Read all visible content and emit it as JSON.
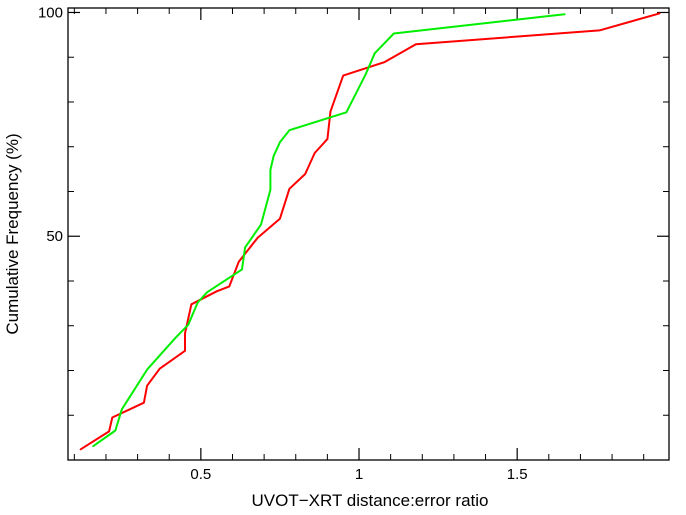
{
  "chart_data": {
    "type": "line",
    "title": "",
    "xlabel": "UVOT−XRT distance:error ratio",
    "ylabel": "Cumulative Frequency (%)",
    "xlim": [
      0.08,
      1.98
    ],
    "ylim": [
      0,
      101
    ],
    "x_ticks": [
      {
        "value": 0.5,
        "label": "0.5"
      },
      {
        "value": 1.0,
        "label": "1"
      },
      {
        "value": 1.5,
        "label": "1.5"
      }
    ],
    "x_minor_ticks": [
      0.1,
      0.2,
      0.3,
      0.4,
      0.6,
      0.7,
      0.8,
      0.9,
      1.1,
      1.2,
      1.3,
      1.4,
      1.6,
      1.7,
      1.8,
      1.9
    ],
    "y_ticks": [
      {
        "value": 50,
        "label": "50"
      },
      {
        "value": 100,
        "label": "100"
      }
    ],
    "y_minor_ticks": [
      10,
      20,
      30,
      40,
      60,
      70,
      80,
      90
    ],
    "grid": false,
    "series": [
      {
        "color": "#ff0000",
        "points": [
          [
            0.12,
            2.4
          ],
          [
            0.21,
            6.4
          ],
          [
            0.22,
            9.5
          ],
          [
            0.32,
            12.8
          ],
          [
            0.33,
            16.6
          ],
          [
            0.37,
            20.4
          ],
          [
            0.45,
            24.4
          ],
          [
            0.45,
            28.3
          ],
          [
            0.47,
            34.8
          ],
          [
            0.55,
            37.7
          ],
          [
            0.59,
            38.8
          ],
          [
            0.62,
            44.3
          ],
          [
            0.68,
            49.7
          ],
          [
            0.75,
            53.9
          ],
          [
            0.78,
            60.6
          ],
          [
            0.83,
            63.9
          ],
          [
            0.86,
            68.6
          ],
          [
            0.9,
            71.7
          ],
          [
            0.91,
            77.9
          ],
          [
            0.95,
            85.9
          ],
          [
            1.08,
            88.9
          ],
          [
            1.18,
            92.9
          ],
          [
            1.76,
            96.0
          ],
          [
            1.95,
            99.8
          ]
        ]
      },
      {
        "color": "#00ee00",
        "points": [
          [
            0.16,
            3.1
          ],
          [
            0.23,
            6.6
          ],
          [
            0.25,
            11.3
          ],
          [
            0.33,
            20.2
          ],
          [
            0.42,
            27.3
          ],
          [
            0.46,
            30.2
          ],
          [
            0.49,
            35.2
          ],
          [
            0.52,
            37.5
          ],
          [
            0.63,
            42.6
          ],
          [
            0.64,
            47.5
          ],
          [
            0.69,
            52.6
          ],
          [
            0.72,
            60.4
          ],
          [
            0.72,
            64.8
          ],
          [
            0.73,
            67.9
          ],
          [
            0.75,
            71.0
          ],
          [
            0.78,
            73.7
          ],
          [
            0.96,
            77.7
          ],
          [
            1.02,
            86.0
          ],
          [
            1.05,
            90.9
          ],
          [
            1.11,
            95.3
          ],
          [
            1.65,
            99.6
          ]
        ]
      }
    ]
  }
}
